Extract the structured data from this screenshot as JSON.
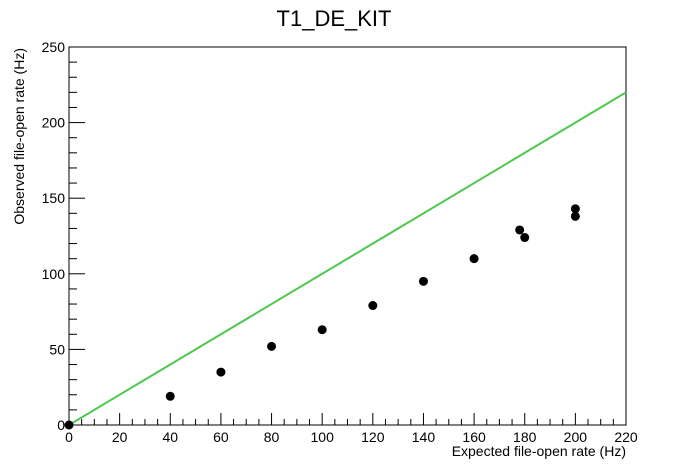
{
  "chart_data": {
    "type": "scatter",
    "title": "T1_DE_KIT",
    "xlabel": "Expected file-open rate (Hz)",
    "ylabel": "Observed file-open rate (Hz)",
    "xlim": [
      0,
      220
    ],
    "ylim": [
      0,
      250
    ],
    "x_ticks": [
      "0",
      "20",
      "40",
      "60",
      "80",
      "100",
      "120",
      "140",
      "160",
      "180",
      "200",
      "220"
    ],
    "y_ticks": [
      "0",
      "50",
      "100",
      "150",
      "200",
      "250"
    ],
    "grid": false,
    "points": [
      {
        "x": 0,
        "y": 0
      },
      {
        "x": 40,
        "y": 19
      },
      {
        "x": 60,
        "y": 35
      },
      {
        "x": 80,
        "y": 52
      },
      {
        "x": 100,
        "y": 63
      },
      {
        "x": 120,
        "y": 79
      },
      {
        "x": 140,
        "y": 95
      },
      {
        "x": 160,
        "y": 110
      },
      {
        "x": 178,
        "y": 129
      },
      {
        "x": 180,
        "y": 124
      },
      {
        "x": 200,
        "y": 143
      },
      {
        "x": 200,
        "y": 138
      }
    ],
    "reference_line": {
      "x": [
        0,
        220
      ],
      "y": [
        0,
        220
      ]
    },
    "colors": {
      "points": "#000000",
      "reference_line": "#4cc94c",
      "axes": "#000000"
    }
  }
}
